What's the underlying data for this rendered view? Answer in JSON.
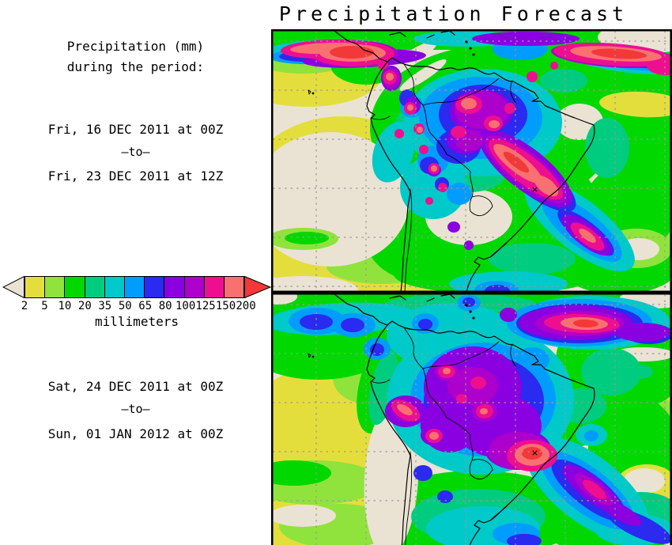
{
  "title": "Precipitation Forecast",
  "sidebar": {
    "heading_line1": "Precipitation (mm)",
    "heading_line2": "during the period:",
    "period1": {
      "start": "Fri, 16 DEC 2011 at 00Z",
      "separator": "–to–",
      "end": "Fri, 23 DEC 2011 at 12Z"
    },
    "period2": {
      "start": "Sat, 24 DEC 2011 at 00Z",
      "separator": "–to–",
      "end": "Sun, 01 JAN 2012 at 00Z"
    }
  },
  "colorbar": {
    "unit_label": "millimeters",
    "tick_labels": [
      "2",
      "5",
      "10",
      "20",
      "35",
      "50",
      "65",
      "80",
      "100",
      "125",
      "150",
      "200"
    ],
    "colors": [
      "#e4de3d",
      "#90e33c",
      "#00d800",
      "#00cc80",
      "#00c9c9",
      "#009dff",
      "#2a2af0",
      "#8a00e0",
      "#ad00cc",
      "#ed0f90",
      "#f97070"
    ],
    "under_arrow_color": "#eae3d3",
    "over_arrow_color": "#f23838"
  },
  "chart_data": {
    "type": "heatmap",
    "title": "Precipitation Forecast",
    "variable": "Accumulated precipitation (mm) during the period",
    "region": "South America and adjacent Pacific / Atlantic oceans",
    "grid": "dashed gray latitude/longitude lines, ~10 degree spacing",
    "legend_position": "left, horizontal arrow colorbar",
    "levels_mm": [
      2,
      5,
      10,
      20,
      35,
      50,
      65,
      80,
      100,
      125,
      150,
      200
    ],
    "level_colors": [
      "#e4de3d",
      "#90e33c",
      "#00d800",
      "#00cc80",
      "#00c9c9",
      "#009dff",
      "#2a2af0",
      "#8a00e0",
      "#ad00cc",
      "#ed0f90",
      "#f97070"
    ],
    "below_min_color": "#eae3d3",
    "above_max_color": "#f23838",
    "panels": [
      {
        "period_start": "Fri, 16 DEC 2011 at 00Z",
        "period_end": "Fri, 23 DEC 2011 at 12Z",
        "features": [
          "Band of very heavy rain (125 to >200 mm) along the Atlantic ITCZ near the northern edge, including a >200 mm core near Panama / Caribbean",
          "Mottled 50-200 mm maxima across the Colombian Andes and western/central Amazon",
          "SACZ-like diagonal band of 100 to >200 mm from central Brazil southeastward into the Atlantic",
          "Dry area (<2 mm) over the southeastern Pacific and over Paraguay / northern Argentina",
          "2-10 mm over the subtropical South Atlantic and along the Peru-Chile coast"
        ]
      },
      {
        "period_start": "Sat, 24 DEC 2011 at 00Z",
        "period_end": "Sun, 01 JAN 2012 at 00Z",
        "features": [
          "Broad smooth maximum of 80-150 mm over the central Amazon basin with >150 mm cores",
          ">200 mm core over southeastern interior Brazil and near the Peru-Brazil border",
          "150-200 mm band along the Atlantic ITCZ northeast of the continent",
          "65-125 mm band extending from southern Brazil southeast over the Atlantic",
          "Dry (<2 mm) coastal strip along Peru/Chile and over the southeastern Pacific",
          "Mostly 5-35 mm over surrounding open oceans"
        ]
      }
    ]
  }
}
